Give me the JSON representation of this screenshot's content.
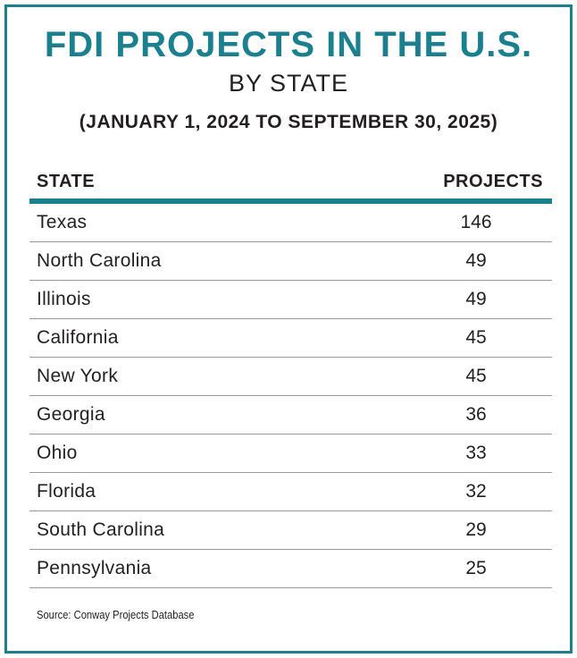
{
  "header": {
    "title": "FDI PROJECTS IN THE U.S.",
    "subtitle": "BY STATE",
    "date_range": "(JANUARY 1, 2024 TO SEPTEMBER 30, 2025)"
  },
  "footer": {
    "source": "Source: Conway Projects Database"
  },
  "colors": {
    "accent": "#1a7f8e",
    "text": "#231f20",
    "rule": "#9a9a9a"
  },
  "chart_data": {
    "type": "table",
    "title": "FDI PROJECTS IN THE U.S.",
    "subtitle": "BY STATE",
    "columns": [
      "STATE",
      "PROJECTS"
    ],
    "rows": [
      {
        "state": "Texas",
        "projects": "146"
      },
      {
        "state": "North Carolina",
        "projects": "49"
      },
      {
        "state": "Illinois",
        "projects": "49"
      },
      {
        "state": "California",
        "projects": "45"
      },
      {
        "state": "New York",
        "projects": "45"
      },
      {
        "state": "Georgia",
        "projects": "36"
      },
      {
        "state": "Ohio",
        "projects": "33"
      },
      {
        "state": "Florida",
        "projects": "32"
      },
      {
        "state": "South Carolina",
        "projects": "29"
      },
      {
        "state": "Pennsylvania",
        "projects": "25"
      }
    ]
  }
}
